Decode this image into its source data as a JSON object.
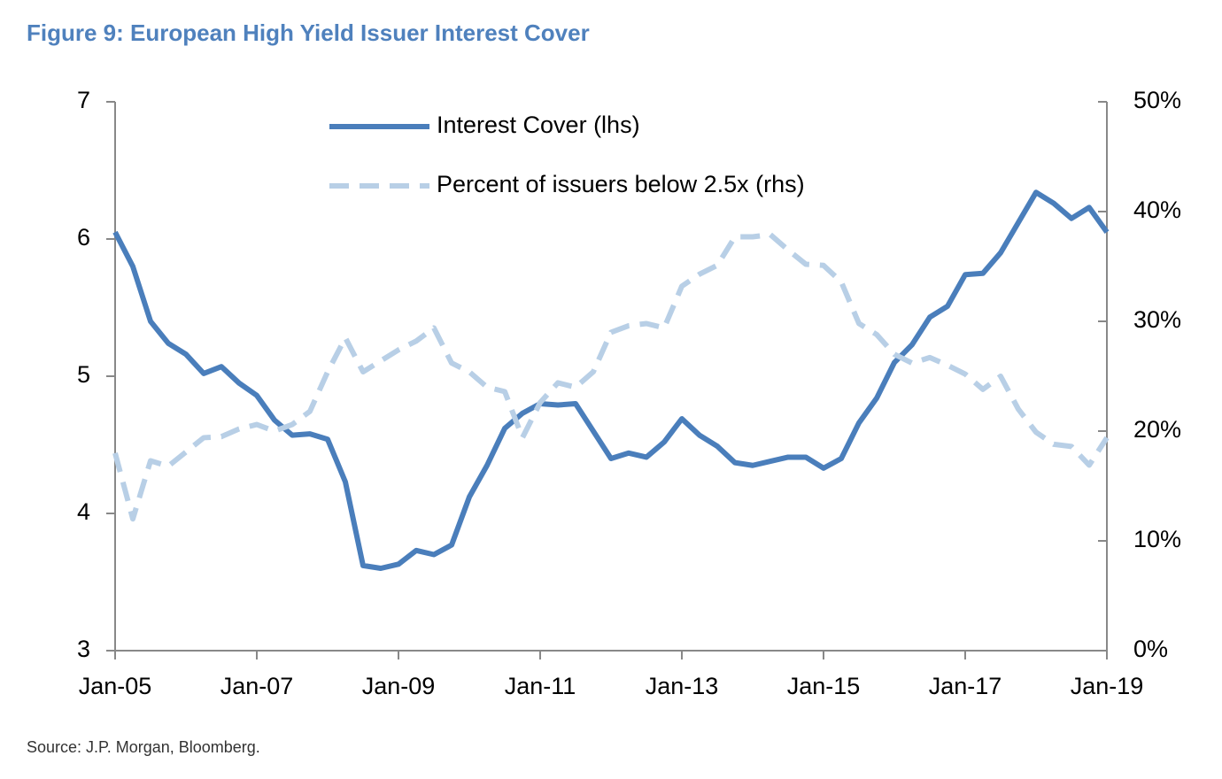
{
  "chart_data": {
    "type": "line",
    "title": "Figure 9: European High Yield Issuer Interest Cover",
    "source": "Source: J.P. Morgan, Bloomberg.",
    "categories": [
      "Jan-05",
      null,
      null,
      null,
      null,
      null,
      null,
      null,
      "Jan-07",
      null,
      null,
      null,
      null,
      null,
      null,
      null,
      "Jan-09",
      null,
      null,
      null,
      null,
      null,
      null,
      null,
      "Jan-11",
      null,
      null,
      null,
      null,
      null,
      null,
      null,
      "Jan-13",
      null,
      null,
      null,
      null,
      null,
      null,
      null,
      "Jan-15",
      null,
      null,
      null,
      null,
      null,
      null,
      null,
      "Jan-17",
      null,
      null,
      null,
      null,
      null,
      null,
      null,
      "Jan-19"
    ],
    "series": [
      {
        "name": "Interest Cover (lhs)",
        "color": "#4a7ebb",
        "line_style": "solid",
        "values": [
          6.05,
          5.8,
          5.4,
          5.24,
          5.16,
          5.02,
          5.07,
          4.95,
          4.86,
          4.68,
          4.57,
          4.58,
          4.54,
          4.23,
          3.62,
          3.6,
          3.63,
          3.73,
          3.7,
          3.77,
          4.12,
          4.35,
          4.62,
          4.73,
          4.8,
          4.79,
          4.8,
          4.6,
          4.4,
          4.44,
          4.41,
          4.52,
          4.69,
          4.57,
          4.49,
          4.37,
          4.35,
          4.38,
          4.41,
          4.41,
          4.33,
          4.4,
          4.66,
          4.84,
          5.1,
          5.23,
          5.43,
          5.51,
          5.74,
          5.75,
          5.9,
          6.12,
          6.34,
          6.26,
          6.15,
          6.23,
          6.05
        ]
      },
      {
        "name": "Percent of issuers below 2.5x (rhs)",
        "color": "#b8cfe6",
        "line_style": "dashed",
        "axis": "y2",
        "values": [
          18,
          12,
          17.3,
          16.8,
          18.1,
          19.4,
          19.5,
          20.2,
          20.6,
          20,
          20.6,
          21.8,
          25.4,
          28.5,
          25.4,
          26.4,
          27.4,
          28.2,
          29.4,
          26.2,
          25.4,
          24,
          23.6,
          19.4,
          22.6,
          24.4,
          24,
          25.4,
          29,
          29.6,
          29.8,
          29.4,
          33.2,
          34.3,
          35.1,
          37.7,
          37.7,
          37.9,
          36.5,
          35.2,
          35.1,
          33.6,
          29.8,
          28.8,
          27,
          26.2,
          26.7,
          26,
          25.2,
          23.8,
          25,
          22,
          19.9,
          18.8,
          18.6,
          16.9,
          19.4
        ]
      }
    ],
    "ylim": [
      3,
      7
    ],
    "yticks": [
      3,
      4,
      5,
      6,
      7
    ],
    "y2lim": [
      0,
      50
    ],
    "y2ticks": [
      {
        "value": 0,
        "label": "0%"
      },
      {
        "value": 10,
        "label": "10%"
      },
      {
        "value": 20,
        "label": "20%"
      },
      {
        "value": 30,
        "label": "30%"
      },
      {
        "value": 40,
        "label": "40%"
      },
      {
        "value": 50,
        "label": "50%"
      }
    ],
    "grid": false
  }
}
